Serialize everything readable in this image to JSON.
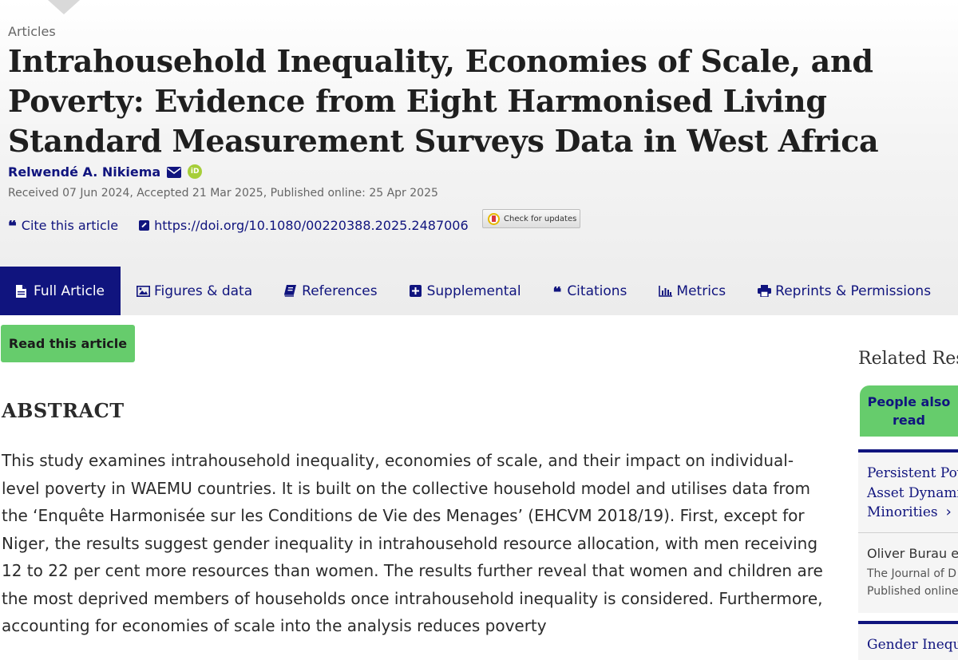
{
  "article": {
    "type": "Articles",
    "title": "Intrahousehold Inequality, Economies of Scale, and Poverty: Evidence from Eight Harmonised Living Standard Measurement Surveys Data in West Africa",
    "author": "Relwendé A. Nikiema",
    "orcid_label": "iD",
    "dates": "Received 07 Jun 2024, Accepted 21 Mar 2025, Published online: 25 Apr 2025",
    "cite_label": "Cite this article",
    "doi": "https://doi.org/10.1080/00220388.2025.2487006",
    "check_updates": "Check for updates"
  },
  "tabs": [
    {
      "label": "Full Article",
      "icon": "document-icon",
      "active": true
    },
    {
      "label": "Figures & data",
      "icon": "image-icon"
    },
    {
      "label": "References",
      "icon": "book-icon"
    },
    {
      "label": "Supplemental",
      "icon": "plus-square-icon"
    },
    {
      "label": "Citations",
      "icon": "quote-icon"
    },
    {
      "label": "Metrics",
      "icon": "bar-chart-icon"
    },
    {
      "label": "Reprints & Permissions",
      "icon": "print-icon"
    }
  ],
  "read_button": "Read this article",
  "abstract": {
    "heading": "ABSTRACT",
    "text": "This study examines intrahousehold inequality, economies of scale, and their impact on individual-level poverty in WAEMU countries. It is built on the collective household model and utilises data from the ‘Enquête Harmonisée sur les Conditions de Vie des Menages’ (EHCVM 2018/19). First, except for Niger, the results suggest gender inequality in intrahousehold resource allocation, with men receiving 12 to 22 per cent more resources than women. The results further reveal that women and children are the most deprived members of households once intrahousehold inequality is considered. Furthermore, accounting for economies of scale into the analysis reduces poverty"
  },
  "sidebar": {
    "heading": "Related Res",
    "tab_label": "People also read",
    "cards": [
      {
        "title_lines": [
          "Persistent Pove",
          "Asset Dynamic",
          "Minorities"
        ],
        "author": "Oliver Burau et",
        "journal": "The Journal of D",
        "published": "Published online"
      },
      {
        "title_lines": [
          "Gender Inequa"
        ]
      }
    ]
  },
  "colors": {
    "navy": "#10147e",
    "green": "#66cc6c",
    "orcid_green": "#a6ce39"
  }
}
